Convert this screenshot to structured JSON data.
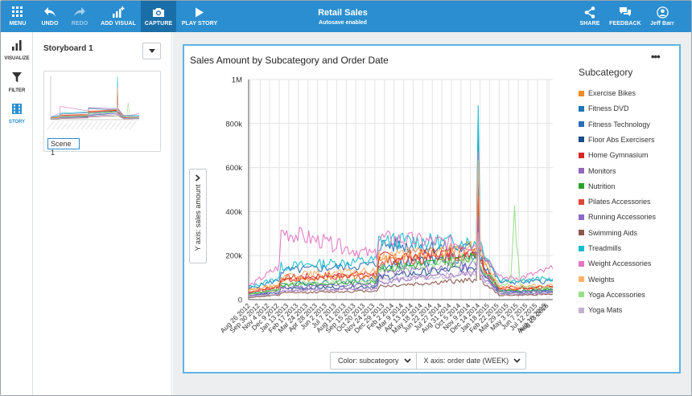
{
  "toolbar": {
    "menu": "MENU",
    "undo": "UNDO",
    "redo": "REDO",
    "add_visual": "ADD VISUAL",
    "capture": "CAPTURE",
    "play_story": "PLAY STORY",
    "title": "Retail Sales",
    "subtitle": "Autosave enabled",
    "share": "SHARE",
    "feedback": "FEEDBACK",
    "user": "Jeff Barr"
  },
  "rail": {
    "visualize": "VISUALIZE",
    "filter": "FILTER",
    "story": "STORY",
    "active": "story"
  },
  "storyboard": {
    "title": "Storyboard 1",
    "scenes": [
      {
        "name": "Scene 1"
      }
    ]
  },
  "visual": {
    "title": "Sales Amount by Subcategory and Order Date",
    "more": "•••",
    "y_axis_button": "Y axis: sales amount",
    "legend_title": "Subcategory",
    "legend": [
      {
        "name": "Exercise Bikes",
        "color": "#f08a24"
      },
      {
        "name": "Fitness DVD",
        "color": "#1f77b4"
      },
      {
        "name": "Fitness Technology",
        "color": "#2b6fb6"
      },
      {
        "name": "Floor Abs Exercisers",
        "color": "#1a4e8c"
      },
      {
        "name": "Home Gymnasium",
        "color": "#d62728"
      },
      {
        "name": "Monitors",
        "color": "#9467bd"
      },
      {
        "name": "Nutrition",
        "color": "#2ca02c"
      },
      {
        "name": "Pilates Accessories",
        "color": "#e0473a"
      },
      {
        "name": "Running Accessories",
        "color": "#8c6bc8"
      },
      {
        "name": "Swimming Aids",
        "color": "#8c564b"
      },
      {
        "name": "Treadmills",
        "color": "#17becf"
      },
      {
        "name": "Weight Accessories",
        "color": "#e377c2"
      },
      {
        "name": "Weights",
        "color": "#ffb26b"
      },
      {
        "name": "Yoga Accessories",
        "color": "#98df8a"
      },
      {
        "name": "Yoga Mats",
        "color": "#c5b0d5"
      }
    ],
    "field_wells": {
      "color": "Color: subcategory",
      "x_axis": "X axis: order date (WEEK)"
    }
  },
  "chart_data": {
    "type": "line",
    "title": "Sales Amount by Subcategory and Order Date",
    "xlabel": "",
    "ylabel": "",
    "ylim": [
      0,
      1000000
    ],
    "y_ticks": [
      "0",
      "200k",
      "400k",
      "600k",
      "800k",
      "1M"
    ],
    "y_tick_values": [
      0,
      200000,
      400000,
      600000,
      800000,
      1000000
    ],
    "x_tick_labels": [
      "Aug 26 2012",
      "Sep 30 2012",
      "Nov 4 2012",
      "Dec 9 2012",
      "Jan 13 2013",
      "Feb 17 2013",
      "Mar 24 2013",
      "Apr 28 2013",
      "Jun 2 2013",
      "Jul 7 2013",
      "Aug 11 2013",
      "Sep 15 2013",
      "Oct 20 2013",
      "Nov 24 2013",
      "Dec 29 2013",
      "Feb 2 2014",
      "Mar 9 2014",
      "Apr 13 2014",
      "May 18 2014",
      "Jun 22 2014",
      "Jul 27 2014",
      "Aug 31 2014",
      "Oct 5 2014",
      "Nov 9 2014",
      "Dec 14 2014",
      "Jan 18 2015",
      "Feb 22 2015",
      "Mar 29 2015",
      "May 3 2015",
      "Jun 7 2015",
      "Jul 12 2015",
      "Aug 16 2015",
      "Aug 23 2015"
    ],
    "x_tick_dates": [
      "2012-08-26",
      "2012-09-30",
      "2012-11-04",
      "2012-12-09",
      "2013-01-13",
      "2013-02-17",
      "2013-03-24",
      "2013-04-28",
      "2013-06-02",
      "2013-07-07",
      "2013-08-11",
      "2013-09-15",
      "2013-10-20",
      "2013-11-24",
      "2013-12-29",
      "2014-02-02",
      "2014-03-09",
      "2014-04-13",
      "2014-05-18",
      "2014-06-22",
      "2014-07-27",
      "2014-08-31",
      "2014-10-05",
      "2014-11-09",
      "2014-12-14",
      "2015-01-18",
      "2015-02-22",
      "2015-03-29",
      "2015-05-03",
      "2015-06-07",
      "2015-07-12",
      "2015-08-16",
      "2015-08-23"
    ],
    "grid": true,
    "legend_position": "right",
    "series": [
      {
        "name": "Exercise Bikes",
        "color": "#f08a24",
        "x": [
          "2012-08-19",
          "2012-12-09",
          "2012-12-16",
          "2013-12-01",
          "2013-12-08",
          "2014-11-30",
          "2014-12-07",
          "2014-12-14",
          "2015-02-22",
          "2015-05-10",
          "2015-09-06"
        ],
        "values": [
          45000,
          60000,
          90000,
          110000,
          175000,
          240000,
          700000,
          230000,
          50000,
          50000,
          55000
        ]
      },
      {
        "name": "Fitness DVD",
        "color": "#1f77b4",
        "x": [
          "2012-08-19",
          "2012-12-09",
          "2012-12-16",
          "2013-12-01",
          "2013-12-08",
          "2014-11-30",
          "2014-12-07",
          "2014-12-14",
          "2015-02-22",
          "2015-05-10",
          "2015-09-06"
        ],
        "values": [
          30000,
          45000,
          70000,
          90000,
          150000,
          200000,
          640000,
          190000,
          40000,
          40000,
          45000
        ]
      },
      {
        "name": "Fitness Technology",
        "color": "#2b6fb6",
        "x": [
          "2012-08-19",
          "2012-12-09",
          "2012-12-16",
          "2013-12-01",
          "2013-12-08",
          "2014-11-30",
          "2014-12-07",
          "2014-12-14",
          "2015-02-22",
          "2015-05-10",
          "2015-09-06"
        ],
        "values": [
          50000,
          90000,
          130000,
          160000,
          250000,
          230000,
          850000,
          240000,
          80000,
          80000,
          85000
        ]
      },
      {
        "name": "Floor Abs Exercisers",
        "color": "#1a4e8c",
        "x": [
          "2012-08-19",
          "2012-12-09",
          "2012-12-16",
          "2013-12-01",
          "2013-12-08",
          "2014-11-30",
          "2014-12-07",
          "2014-12-14",
          "2015-02-22",
          "2015-05-10",
          "2015-09-06"
        ],
        "values": [
          20000,
          30000,
          50000,
          60000,
          100000,
          150000,
          560000,
          150000,
          30000,
          30000,
          35000
        ]
      },
      {
        "name": "Home Gymnasium",
        "color": "#d62728",
        "x": [
          "2012-08-19",
          "2012-12-09",
          "2012-12-16",
          "2013-12-01",
          "2013-12-08",
          "2014-11-30",
          "2014-12-07",
          "2014-12-14",
          "2015-02-22",
          "2015-05-10",
          "2015-09-06"
        ],
        "values": [
          35000,
          60000,
          100000,
          120000,
          190000,
          220000,
          500000,
          180000,
          55000,
          55000,
          60000
        ]
      },
      {
        "name": "Monitors",
        "color": "#9467bd",
        "x": [
          "2012-08-19",
          "2012-12-09",
          "2012-12-16",
          "2013-12-01",
          "2013-12-08",
          "2014-11-30",
          "2014-12-07",
          "2014-12-14",
          "2015-02-22",
          "2015-05-10",
          "2015-09-06"
        ],
        "values": [
          15000,
          25000,
          40000,
          50000,
          80000,
          120000,
          380000,
          120000,
          25000,
          25000,
          30000
        ]
      },
      {
        "name": "Nutrition",
        "color": "#2ca02c",
        "x": [
          "2012-08-19",
          "2012-12-09",
          "2012-12-16",
          "2013-12-01",
          "2013-12-08",
          "2014-11-30",
          "2014-12-07",
          "2014-12-14",
          "2015-02-22",
          "2015-05-10",
          "2015-09-06"
        ],
        "values": [
          25000,
          40000,
          65000,
          80000,
          140000,
          190000,
          450000,
          160000,
          40000,
          40000,
          45000
        ]
      },
      {
        "name": "Pilates Accessories",
        "color": "#e0473a",
        "x": [
          "2012-08-19",
          "2012-12-09",
          "2012-12-16",
          "2013-12-01",
          "2013-12-08",
          "2014-11-30",
          "2014-12-07",
          "2014-12-14",
          "2015-02-22",
          "2015-05-10",
          "2015-09-06"
        ],
        "values": [
          30000,
          55000,
          90000,
          110000,
          170000,
          210000,
          520000,
          170000,
          50000,
          50000,
          55000
        ]
      },
      {
        "name": "Running Accessories",
        "color": "#8c6bc8",
        "x": [
          "2012-08-19",
          "2012-12-09",
          "2012-12-16",
          "2013-12-01",
          "2013-12-08",
          "2014-11-30",
          "2014-12-07",
          "2014-12-14",
          "2015-02-22",
          "2015-05-10",
          "2015-09-06"
        ],
        "values": [
          20000,
          35000,
          55000,
          70000,
          120000,
          160000,
          420000,
          140000,
          35000,
          35000,
          40000
        ]
      },
      {
        "name": "Swimming Aids",
        "color": "#8c564b",
        "x": [
          "2012-08-19",
          "2012-12-09",
          "2012-12-16",
          "2013-12-01",
          "2013-12-08",
          "2014-11-30",
          "2014-12-07",
          "2014-12-14",
          "2015-02-22",
          "2015-05-10",
          "2015-09-06"
        ],
        "values": [
          10000,
          20000,
          30000,
          40000,
          60000,
          90000,
          300000,
          90000,
          20000,
          20000,
          25000
        ]
      },
      {
        "name": "Treadmills",
        "color": "#17becf",
        "x": [
          "2012-08-19",
          "2012-12-09",
          "2012-12-16",
          "2013-12-01",
          "2013-12-08",
          "2014-11-30",
          "2014-12-07",
          "2014-12-14",
          "2015-02-22",
          "2015-05-10",
          "2015-09-06"
        ],
        "values": [
          55000,
          100000,
          150000,
          180000,
          270000,
          260000,
          990000,
          260000,
          90000,
          90000,
          95000
        ]
      },
      {
        "name": "Weight Accessories",
        "color": "#e377c2",
        "x": [
          "2012-08-19",
          "2012-12-09",
          "2012-12-16",
          "2013-12-01",
          "2013-12-08",
          "2014-11-30",
          "2014-12-07",
          "2014-12-14",
          "2015-02-22",
          "2015-05-10",
          "2015-09-06"
        ],
        "values": [
          60000,
          150000,
          310000,
          200000,
          280000,
          250000,
          760000,
          250000,
          100000,
          100000,
          140000
        ]
      },
      {
        "name": "Weights",
        "color": "#ffb26b",
        "x": [
          "2012-08-19",
          "2012-12-09",
          "2012-12-16",
          "2013-12-01",
          "2013-12-08",
          "2014-11-30",
          "2014-12-07",
          "2014-12-14",
          "2015-02-22",
          "2015-05-10",
          "2015-09-06"
        ],
        "values": [
          40000,
          70000,
          110000,
          130000,
          200000,
          230000,
          720000,
          220000,
          60000,
          60000,
          65000
        ]
      },
      {
        "name": "Yoga Accessories",
        "color": "#98df8a",
        "x": [
          "2012-08-19",
          "2012-12-09",
          "2012-12-16",
          "2013-12-01",
          "2013-12-08",
          "2014-11-30",
          "2014-12-07",
          "2014-12-14",
          "2015-02-22",
          "2015-04-05",
          "2015-04-19",
          "2015-05-10",
          "2015-09-06"
        ],
        "values": [
          25000,
          45000,
          70000,
          90000,
          140000,
          180000,
          300000,
          150000,
          60000,
          80000,
          390000,
          60000,
          50000
        ]
      },
      {
        "name": "Yoga Mats",
        "color": "#c5b0d5",
        "x": [
          "2012-08-19",
          "2012-12-09",
          "2012-12-16",
          "2013-12-01",
          "2013-12-08",
          "2014-11-30",
          "2014-12-07",
          "2014-12-14",
          "2015-02-22",
          "2015-05-10",
          "2015-09-06"
        ],
        "values": [
          15000,
          25000,
          40000,
          50000,
          90000,
          120000,
          350000,
          110000,
          25000,
          25000,
          30000
        ]
      }
    ]
  }
}
